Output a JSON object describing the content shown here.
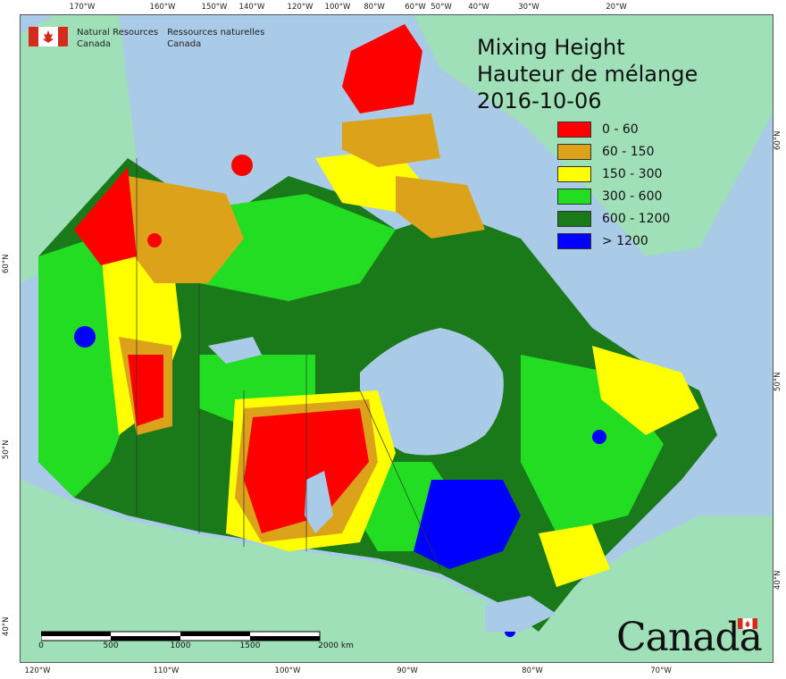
{
  "agency": {
    "en_line1": "Natural Resources",
    "en_line2": "Canada",
    "fr_line1": "Ressources naturelles",
    "fr_line2": "Canada"
  },
  "title": {
    "line1": "Mixing Height",
    "line2": "Hauteur de mélange",
    "date": "2016-10-06"
  },
  "legend": [
    {
      "label": "0 - 60",
      "color": "#ff0000"
    },
    {
      "label": "60 - 150",
      "color": "#dca21a"
    },
    {
      "label": "150 - 300",
      "color": "#ffff00"
    },
    {
      "label": "300 - 600",
      "color": "#22dd22"
    },
    {
      "label": "600 - 1200",
      "color": "#1a7a1a"
    },
    {
      "label": "> 1200",
      "color": "#0000ff"
    }
  ],
  "graticule": {
    "top": [
      "170°W",
      "160°W",
      "150°W",
      "140°W",
      "120°W",
      "100°W",
      "80°W",
      "60°W",
      "50°W",
      "40°W",
      "30°W",
      "20°W"
    ],
    "bottom": [
      "120°W",
      "110°W",
      "100°W",
      "90°W",
      "80°W",
      "70°W"
    ],
    "left": [
      "60°N",
      "50°N",
      "40°N"
    ],
    "right": [
      "60°N",
      "50°N",
      "40°N"
    ]
  },
  "scale": {
    "labels": [
      "0",
      "500",
      "1000",
      "1500",
      "2000 km"
    ]
  },
  "wordmark": "Canada",
  "colors": {
    "ocean": "#a9cbe8",
    "foreign_land": "#9fe0b8"
  }
}
